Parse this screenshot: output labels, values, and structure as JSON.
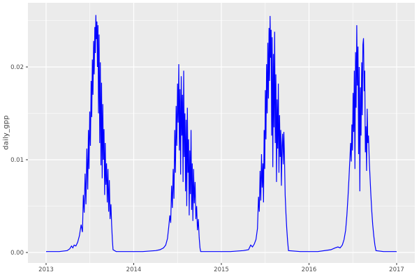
{
  "figure": {
    "y_axis_title": "daily_gpp"
  },
  "chart_data": {
    "type": "line",
    "title": "",
    "xlabel": "",
    "ylabel": "daily_gpp",
    "legend": "none",
    "grid": "on",
    "panel_bg": "#EBEBEB",
    "grid_color": "#FFFFFF",
    "tick_label_color": "#4D4D4D",
    "tick_mark_color": "#333333",
    "series_color": "#0000FF",
    "xlim": [
      2012.7928,
      2017.2073
    ],
    "ylim": [
      -0.0011278,
      0.0269173
    ],
    "x_ticks": [
      {
        "v": 2013,
        "label": "2013"
      },
      {
        "v": 2014,
        "label": "2014"
      },
      {
        "v": 2015,
        "label": "2015"
      },
      {
        "v": 2016,
        "label": "2016"
      },
      {
        "v": 2017,
        "label": "2017"
      }
    ],
    "y_ticks": [
      {
        "v": 0.0,
        "label": "0.00"
      },
      {
        "v": 0.01,
        "label": "0.01"
      },
      {
        "v": 0.02,
        "label": "0.02"
      }
    ],
    "x_minor": [
      2013.5,
      2014.5,
      2015.5,
      2016.5
    ],
    "y_minor": [
      0.005,
      0.015,
      0.025
    ],
    "points": [
      [
        2013.0,
        0.0001
      ],
      [
        2013.15,
        0.0001
      ],
      [
        2013.24,
        0.0002
      ],
      [
        2013.27,
        0.0004
      ],
      [
        2013.29,
        0.0007
      ],
      [
        2013.305,
        0.0005
      ],
      [
        2013.32,
        0.0008
      ],
      [
        2013.34,
        0.0007
      ],
      [
        2013.36,
        0.0011
      ],
      [
        2013.38,
        0.0018
      ],
      [
        2013.4,
        0.003
      ],
      [
        2013.415,
        0.0022
      ],
      [
        2013.425,
        0.0062
      ],
      [
        2013.435,
        0.0043
      ],
      [
        2013.445,
        0.0085
      ],
      [
        2013.455,
        0.0052
      ],
      [
        2013.465,
        0.0112
      ],
      [
        2013.475,
        0.0068
      ],
      [
        2013.483,
        0.0132
      ],
      [
        2013.49,
        0.009
      ],
      [
        2013.498,
        0.0152
      ],
      [
        2013.506,
        0.0115
      ],
      [
        2013.514,
        0.0185
      ],
      [
        2013.521,
        0.0146
      ],
      [
        2013.528,
        0.0208
      ],
      [
        2013.535,
        0.017
      ],
      [
        2013.542,
        0.0228
      ],
      [
        2013.549,
        0.0192
      ],
      [
        2013.556,
        0.0243
      ],
      [
        2013.562,
        0.0215
      ],
      [
        2013.568,
        0.0256
      ],
      [
        2013.574,
        0.023
      ],
      [
        2013.58,
        0.0249
      ],
      [
        2013.586,
        0.02
      ],
      [
        2013.592,
        0.0245
      ],
      [
        2013.598,
        0.015
      ],
      [
        2013.605,
        0.0235
      ],
      [
        2013.612,
        0.0118
      ],
      [
        2013.619,
        0.0205
      ],
      [
        2013.626,
        0.0094
      ],
      [
        2013.633,
        0.0183
      ],
      [
        2013.64,
        0.008
      ],
      [
        2013.647,
        0.016
      ],
      [
        2013.654,
        0.01
      ],
      [
        2013.661,
        0.0133
      ],
      [
        2013.668,
        0.0062
      ],
      [
        2013.675,
        0.0118
      ],
      [
        2013.682,
        0.0073
      ],
      [
        2013.69,
        0.0096
      ],
      [
        2013.698,
        0.0054
      ],
      [
        2013.706,
        0.009
      ],
      [
        2013.714,
        0.0044
      ],
      [
        2013.722,
        0.0078
      ],
      [
        2013.73,
        0.0036
      ],
      [
        2013.74,
        0.0052
      ],
      [
        2013.748,
        0.003
      ],
      [
        2013.756,
        0.0014
      ],
      [
        2013.764,
        0.0003
      ],
      [
        2013.8,
        0.0001
      ],
      [
        2013.95,
        0.0001
      ],
      [
        2014.1,
        0.0001
      ],
      [
        2014.25,
        0.0002
      ],
      [
        2014.3,
        0.0003
      ],
      [
        2014.34,
        0.0005
      ],
      [
        2014.365,
        0.0008
      ],
      [
        2014.385,
        0.0015
      ],
      [
        2014.4,
        0.0028
      ],
      [
        2014.412,
        0.004
      ],
      [
        2014.422,
        0.0032
      ],
      [
        2014.432,
        0.0072
      ],
      [
        2014.441,
        0.0048
      ],
      [
        2014.45,
        0.009
      ],
      [
        2014.459,
        0.0058
      ],
      [
        2014.468,
        0.0132
      ],
      [
        2014.476,
        0.0086
      ],
      [
        2014.484,
        0.0158
      ],
      [
        2014.492,
        0.0115
      ],
      [
        2014.5,
        0.0182
      ],
      [
        2014.507,
        0.014
      ],
      [
        2014.514,
        0.0203
      ],
      [
        2014.521,
        0.011
      ],
      [
        2014.528,
        0.0176
      ],
      [
        2014.535,
        0.0084
      ],
      [
        2014.542,
        0.019
      ],
      [
        2014.549,
        0.0126
      ],
      [
        2014.556,
        0.017
      ],
      [
        2014.563,
        0.0076
      ],
      [
        2014.57,
        0.0196
      ],
      [
        2014.577,
        0.0103
      ],
      [
        2014.584,
        0.015
      ],
      [
        2014.591,
        0.0066
      ],
      [
        2014.598,
        0.0143
      ],
      [
        2014.605,
        0.005
      ],
      [
        2014.612,
        0.0156
      ],
      [
        2014.619,
        0.0086
      ],
      [
        2014.626,
        0.0122
      ],
      [
        2014.633,
        0.004
      ],
      [
        2014.64,
        0.011
      ],
      [
        2014.647,
        0.0063
      ],
      [
        2014.654,
        0.0132
      ],
      [
        2014.661,
        0.0046
      ],
      [
        2014.668,
        0.0096
      ],
      [
        2014.675,
        0.0034
      ],
      [
        2014.683,
        0.009
      ],
      [
        2014.691,
        0.0053
      ],
      [
        2014.7,
        0.0076
      ],
      [
        2014.709,
        0.0036
      ],
      [
        2014.718,
        0.005
      ],
      [
        2014.727,
        0.0024
      ],
      [
        2014.737,
        0.0036
      ],
      [
        2014.747,
        0.0016
      ],
      [
        2014.756,
        0.0005
      ],
      [
        2014.764,
        0.0001
      ],
      [
        2014.9,
        0.0001
      ],
      [
        2015.1,
        0.0001
      ],
      [
        2015.25,
        0.0002
      ],
      [
        2015.31,
        0.0003
      ],
      [
        2015.335,
        0.0008
      ],
      [
        2015.355,
        0.0006
      ],
      [
        2015.375,
        0.0009
      ],
      [
        2015.395,
        0.0014
      ],
      [
        2015.412,
        0.0026
      ],
      [
        2015.424,
        0.006
      ],
      [
        2015.433,
        0.0044
      ],
      [
        2015.442,
        0.0088
      ],
      [
        2015.45,
        0.0056
      ],
      [
        2015.458,
        0.0106
      ],
      [
        2015.466,
        0.007
      ],
      [
        2015.474,
        0.0096
      ],
      [
        2015.481,
        0.0054
      ],
      [
        2015.488,
        0.0132
      ],
      [
        2015.495,
        0.009
      ],
      [
        2015.502,
        0.0175
      ],
      [
        2015.509,
        0.0122
      ],
      [
        2015.516,
        0.0203
      ],
      [
        2015.523,
        0.015
      ],
      [
        2015.53,
        0.0226
      ],
      [
        2015.537,
        0.0166
      ],
      [
        2015.544,
        0.0242
      ],
      [
        2015.55,
        0.0185
      ],
      [
        2015.556,
        0.0255
      ],
      [
        2015.562,
        0.021
      ],
      [
        2015.568,
        0.024
      ],
      [
        2015.574,
        0.0126
      ],
      [
        2015.58,
        0.0232
      ],
      [
        2015.587,
        0.0092
      ],
      [
        2015.594,
        0.0214
      ],
      [
        2015.601,
        0.0135
      ],
      [
        2015.608,
        0.0238
      ],
      [
        2015.615,
        0.0118
      ],
      [
        2015.622,
        0.0192
      ],
      [
        2015.629,
        0.0076
      ],
      [
        2015.636,
        0.0165
      ],
      [
        2015.643,
        0.0112
      ],
      [
        2015.65,
        0.0182
      ],
      [
        2015.657,
        0.0086
      ],
      [
        2015.664,
        0.0148
      ],
      [
        2015.671,
        0.0103
      ],
      [
        2015.678,
        0.0132
      ],
      [
        2015.685,
        0.0072
      ],
      [
        2015.692,
        0.0115
      ],
      [
        2015.699,
        0.0128
      ],
      [
        2015.706,
        0.0095
      ],
      [
        2015.713,
        0.013
      ],
      [
        2015.72,
        0.0104
      ],
      [
        2015.728,
        0.0062
      ],
      [
        2015.737,
        0.0042
      ],
      [
        2015.746,
        0.0026
      ],
      [
        2015.756,
        0.0012
      ],
      [
        2015.766,
        0.0002
      ],
      [
        2015.9,
        0.0001
      ],
      [
        2016.1,
        0.0001
      ],
      [
        2016.25,
        0.0003
      ],
      [
        2016.3,
        0.0005
      ],
      [
        2016.33,
        0.0006
      ],
      [
        2016.355,
        0.0005
      ],
      [
        2016.38,
        0.0008
      ],
      [
        2016.4,
        0.0014
      ],
      [
        2016.418,
        0.0024
      ],
      [
        2016.432,
        0.004
      ],
      [
        2016.445,
        0.006
      ],
      [
        2016.456,
        0.008
      ],
      [
        2016.466,
        0.01
      ],
      [
        2016.475,
        0.0118
      ],
      [
        2016.482,
        0.0098
      ],
      [
        2016.489,
        0.0138
      ],
      [
        2016.496,
        0.011
      ],
      [
        2016.503,
        0.0172
      ],
      [
        2016.51,
        0.013
      ],
      [
        2016.517,
        0.0196
      ],
      [
        2016.524,
        0.009
      ],
      [
        2016.531,
        0.0216
      ],
      [
        2016.538,
        0.0156
      ],
      [
        2016.545,
        0.0245
      ],
      [
        2016.552,
        0.018
      ],
      [
        2016.559,
        0.0222
      ],
      [
        2016.566,
        0.0106
      ],
      [
        2016.573,
        0.02
      ],
      [
        2016.58,
        0.0066
      ],
      [
        2016.587,
        0.0178
      ],
      [
        2016.594,
        0.0126
      ],
      [
        2016.601,
        0.0205
      ],
      [
        2016.608,
        0.0148
      ],
      [
        2016.615,
        0.0224
      ],
      [
        2016.622,
        0.0231
      ],
      [
        2016.629,
        0.0174
      ],
      [
        2016.636,
        0.0196
      ],
      [
        2016.643,
        0.0108
      ],
      [
        2016.65,
        0.0136
      ],
      [
        2016.657,
        0.0088
      ],
      [
        2016.664,
        0.0155
      ],
      [
        2016.671,
        0.0118
      ],
      [
        2016.679,
        0.0126
      ],
      [
        2016.688,
        0.0098
      ],
      [
        2016.697,
        0.008
      ],
      [
        2016.706,
        0.0062
      ],
      [
        2016.716,
        0.0045
      ],
      [
        2016.727,
        0.003
      ],
      [
        2016.739,
        0.0018
      ],
      [
        2016.752,
        0.0008
      ],
      [
        2016.764,
        0.0002
      ],
      [
        2016.85,
        0.0001
      ],
      [
        2017.0,
        0.0001
      ]
    ]
  }
}
